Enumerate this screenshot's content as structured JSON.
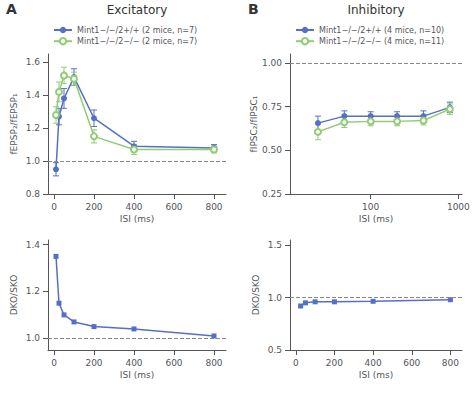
{
  "chart_data": [
    {
      "type": "line",
      "title": "Excitatory",
      "annotations": [
        "A"
      ],
      "x_label": "ISI (ms)",
      "y_label": "fEPSP₂/fEPSP₁",
      "x": [
        10,
        25,
        50,
        100,
        200,
        400,
        800
      ],
      "series": [
        {
          "name": "Mint1−/−/2+/+ (2 mice, n=7)",
          "marker": "circle",
          "values": [
            0.95,
            1.27,
            1.38,
            1.51,
            1.26,
            1.09,
            1.08
          ],
          "yerr": [
            0.04,
            0.05,
            0.06,
            0.05,
            0.05,
            0.03,
            0.02
          ]
        },
        {
          "name": "Mint1−/−/2−/− (2 mice, n=7)",
          "marker": "open_circle",
          "values": [
            1.28,
            1.42,
            1.52,
            1.5,
            1.15,
            1.07,
            1.07
          ],
          "yerr": [
            0.05,
            0.06,
            0.05,
            0.04,
            0.04,
            0.03,
            0.02
          ]
        }
      ],
      "xlim": [
        -30,
        860
      ],
      "xticks": [
        0,
        200,
        400,
        600,
        800
      ],
      "ylim": [
        0.8,
        1.65
      ],
      "yticks": [
        0.8,
        {
          "value": 1,
          "label": "1.0"
        },
        1.2,
        1.4,
        1.6
      ],
      "hline": 1,
      "grid": false,
      "legend": "top"
    },
    {
      "type": "line",
      "title": "Inhibitory",
      "annotations": [
        "B"
      ],
      "x_label": "ISI (ms)",
      "y_label": "fIPSC₂/fIPSC₁",
      "x": [
        25,
        50,
        100,
        200,
        400,
        800
      ],
      "series": [
        {
          "name": "Mint1−/−/2+/+ (4 mice, n=10)",
          "marker": "circle",
          "values": [
            0.655,
            0.695,
            0.695,
            0.695,
            0.695,
            0.745
          ],
          "yerr": [
            0.04,
            0.03,
            0.025,
            0.025,
            0.03,
            0.03
          ]
        },
        {
          "name": "Mint1−/−/2−/− (4 mice, n=11)",
          "marker": "open_circle",
          "values": [
            0.605,
            0.66,
            0.665,
            0.665,
            0.67,
            0.735
          ],
          "yerr": [
            0.045,
            0.03,
            0.025,
            0.025,
            0.025,
            0.03
          ]
        }
      ],
      "log": "x",
      "xlim": [
        12,
        1100
      ],
      "xticks": [
        100,
        1000
      ],
      "ylim": [
        0.25,
        1.05
      ],
      "yticks": [
        0.25,
        {
          "value": 0.5,
          "label": "0.50"
        },
        0.75,
        {
          "value": 1,
          "label": "1.00"
        }
      ],
      "hline": 1,
      "grid": false,
      "legend": "top"
    },
    {
      "type": "line",
      "x_label": "ISI (ms)",
      "y_label": "DKO/SKO",
      "x": [
        10,
        25,
        50,
        100,
        200,
        400,
        800
      ],
      "series": [
        {
          "marker": "square",
          "values": [
            1.35,
            1.15,
            1.1,
            1.07,
            1.05,
            1.04,
            1.01
          ]
        }
      ],
      "xlim": [
        -30,
        860
      ],
      "xticks": [
        0,
        200,
        400,
        600,
        800
      ],
      "ylim": [
        0.95,
        1.42
      ],
      "yticks": [
        {
          "value": 1,
          "label": "1.0"
        },
        1.2,
        1.4
      ],
      "hline": 1,
      "grid": false
    },
    {
      "type": "line",
      "x_label": "ISI (ms)",
      "y_label": "DKO/SKO",
      "x": [
        25,
        50,
        100,
        200,
        400,
        800
      ],
      "series": [
        {
          "marker": "square",
          "values": [
            0.92,
            0.95,
            0.96,
            0.96,
            0.965,
            0.98
          ]
        }
      ],
      "xlim": [
        -30,
        860
      ],
      "xticks": [
        0,
        200,
        400,
        600,
        800
      ],
      "ylim": [
        0.5,
        1.55
      ],
      "yticks": [
        0.5,
        {
          "value": 1,
          "label": "1.0"
        },
        1.5
      ],
      "hline": 1,
      "grid": false
    }
  ]
}
